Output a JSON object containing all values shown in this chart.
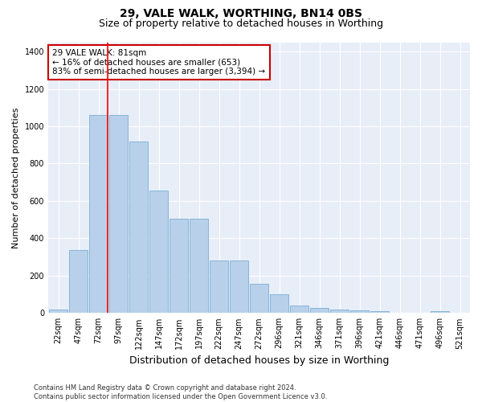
{
  "title": "29, VALE WALK, WORTHING, BN14 0BS",
  "subtitle": "Size of property relative to detached houses in Worthing",
  "xlabel": "Distribution of detached houses by size in Worthing",
  "ylabel": "Number of detached properties",
  "footer": "Contains HM Land Registry data © Crown copyright and database right 2024.\nContains public sector information licensed under the Open Government Licence v3.0.",
  "categories": [
    "22sqm",
    "47sqm",
    "72sqm",
    "97sqm",
    "122sqm",
    "147sqm",
    "172sqm",
    "197sqm",
    "222sqm",
    "247sqm",
    "272sqm",
    "296sqm",
    "321sqm",
    "346sqm",
    "371sqm",
    "396sqm",
    "421sqm",
    "446sqm",
    "471sqm",
    "496sqm",
    "521sqm"
  ],
  "values": [
    20,
    335,
    1060,
    1060,
    920,
    655,
    505,
    505,
    280,
    280,
    155,
    100,
    38,
    25,
    20,
    15,
    10,
    0,
    0,
    10,
    0
  ],
  "bar_color": "#b8d0ea",
  "bar_edge_color": "#7aafd4",
  "annotation_text": "29 VALE WALK: 81sqm\n← 16% of detached houses are smaller (653)\n83% of semi-detached houses are larger (3,394) →",
  "annotation_box_color": "#ffffff",
  "annotation_box_edge_color": "#cc0000",
  "redline_bar_index": 2,
  "ylim": [
    0,
    1450
  ],
  "yticks": [
    0,
    200,
    400,
    600,
    800,
    1000,
    1200,
    1400
  ],
  "fig_bg_color": "#ffffff",
  "plot_bg_color": "#e8eef8",
  "title_fontsize": 10,
  "subtitle_fontsize": 9,
  "ylabel_fontsize": 8,
  "xlabel_fontsize": 9,
  "tick_fontsize": 7,
  "footer_fontsize": 6,
  "annotation_fontsize": 7.5
}
